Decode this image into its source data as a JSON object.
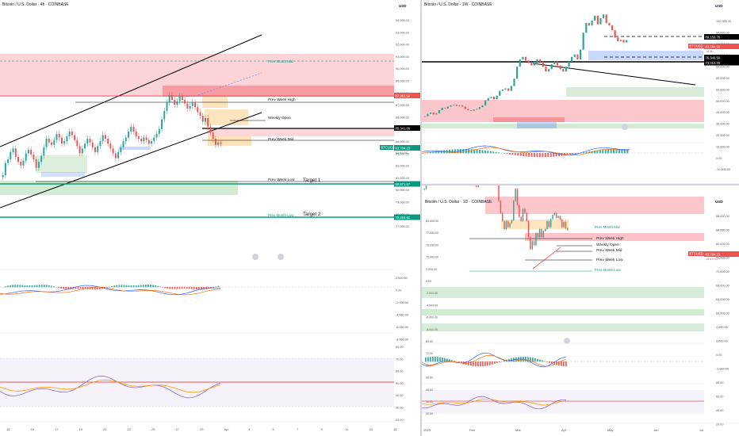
{
  "colors": {
    "bull": "#26a69a",
    "bear": "#ef5350",
    "zone_red": "#f23645",
    "zone_green": "#4caf50",
    "zone_orange": "#ff9800",
    "zone_blue": "#2962ff",
    "rsi": "#7e57c2",
    "rsi_ma": "#ff9800",
    "macd": "#2962ff",
    "signal": "#ff6d00",
    "teal_line": "#089981"
  },
  "left": {
    "title": "Bitcoin / U.S. Dollar · 4h · COINBASE",
    "currency": "USD",
    "price_ticks": [
      "94,000.00",
      "93,000.00",
      "92,000.00",
      "91,000.00",
      "90,000.00",
      "89,000.00",
      "88,000.00",
      "87,000.00",
      "86,000.00",
      "85,000.00",
      "84,000.00",
      "83,000.00",
      "82,000.00",
      "81,000.00",
      "80,000.00",
      "79,000.00",
      "78,000.00",
      "77,000.00"
    ],
    "macd_ticks": [
      "2,000.00",
      "0.00",
      "-2,000.00",
      "-4,000.00",
      "-6,000.00",
      "-8,000.00"
    ],
    "rsi_ticks": [
      "80.00",
      "70.00",
      "60.00",
      "50.00",
      "40.00",
      "30.00",
      "20.00"
    ],
    "x_ticks": [
      "15",
      "15",
      "17",
      "19",
      "21",
      "23",
      "25",
      "27",
      "29",
      "Apr",
      "3",
      "5",
      "7",
      "9",
      "11",
      "13",
      "15"
    ],
    "labels": {
      "prev_month_mid": "Prev Month Mid",
      "prev_week_high": "Prev Week High",
      "weekly_open": "Weekly Open",
      "prev_week_mid": "Prev Week Mid",
      "prev_week_low": "Prev Week Low",
      "prev_month_low": "Prev Month Low",
      "target_1": "Target 1",
      "target_2": "Target 2"
    },
    "price_tags": {
      "pwh": "87,961.58",
      "wo": "85,341.66",
      "cur": "83,784.23",
      "cur_sub": "03:57:05",
      "btcusd": "BTCUSD",
      "t1": "80,871.57",
      "t2": "78,253.61"
    }
  },
  "right_top": {
    "title": "Bitcoin / U.S. Dollar · 1W · COINBASE",
    "currency": "USD",
    "price_ticks": [
      "100,000.00",
      "94,000.00",
      "92,000.00",
      "91,000.00",
      "90,000.00",
      "80,000.00",
      "60,000.00",
      "50,000.00",
      "40,000.00",
      "30,000.00",
      "20,000.00",
      "10,000.00",
      "0.00",
      "-10,000.00"
    ],
    "x_ticks": [
      "23",
      "Mar",
      "Jul",
      "Sep",
      "2024",
      "Mar",
      "Jul",
      "Sep",
      "Nov",
      "2025",
      "Mar",
      "Jul",
      "Nov",
      "2026"
    ],
    "price_tags": {
      "l1": "89,159.76",
      "cur": "83,784.23",
      "cur_sub": "1d 8h",
      "l2": "76,349.59",
      "l3": "73,012.16",
      "btcusd": "BTCUSD"
    }
  },
  "right_bottom": {
    "title": "Bitcoin / U.S. Dollar · 1D · COINBASE",
    "currency": "USD",
    "left_ticks": [
      "80,000.00",
      "77,500.00",
      "76,000.00",
      "75,000.00",
      "2,000.00",
      "0.00",
      "-2,000.00",
      "-4,000.00",
      "-6,000.00",
      "-8,000.00",
      "80.00",
      "70.00",
      "60.00",
      "50.00",
      "40.00",
      "30.00",
      "20.00"
    ],
    "right_ticks": [
      "88,000.00",
      "84,000.00",
      "80,000.00",
      "76,000.00",
      "72,000.00",
      "68,000.00",
      "64,000.00",
      "60,000.00",
      "4,000.00",
      "2,000.00",
      "0.00",
      "-2,000.00",
      "80.00",
      "60.00",
      "40.00",
      "20.00"
    ],
    "x_ticks": [
      "2025",
      "Feb",
      "Mar",
      "Apr",
      "May",
      "Jun",
      "Jul"
    ],
    "labels": {
      "prev_month_mid": "Prev Month Mid",
      "prev_week_high": "Prev Week High",
      "weekly_open": "Weekly Open",
      "prev_week_mid": "Prev Week Mid",
      "prev_week_low": "Prev Week Low",
      "prev_month_low": "Prev Month Low"
    },
    "price_tags": {
      "cur": "83,784.23",
      "cur_sub": "15:47:03",
      "btcusd": "BTCUSD"
    }
  },
  "chart_data": [
    {
      "type": "candlestick",
      "title": "Bitcoin / U.S. Dollar · 4h · COINBASE",
      "close": [
        81200,
        82200,
        82500,
        83100,
        83400,
        82700,
        82300,
        82000,
        82400,
        83000,
        83300,
        82900,
        82500,
        81800,
        82300,
        82800,
        83500,
        84200,
        83900,
        83700,
        84100,
        84600,
        84300,
        83800,
        84000,
        84400,
        84800,
        84500,
        84100,
        83600,
        83000,
        83400,
        83800,
        84200,
        83900,
        83500,
        83100,
        83600,
        84000,
        84500,
        84200,
        83800,
        83400,
        83000,
        82600,
        83100,
        83500,
        84000,
        84300,
        84800,
        85200,
        84800,
        84400,
        84200,
        84000,
        84300,
        84100,
        83800,
        84000,
        84300,
        84600,
        85000,
        85800,
        86500,
        87200,
        87800,
        87400,
        87000,
        87300,
        87700,
        87400,
        87100,
        86700,
        86900,
        87200,
        86800,
        86400,
        86100,
        85600,
        85900,
        85200,
        84700,
        84200,
        83700,
        83900,
        83784
      ],
      "levels": {
        "prev_week_high": 87961.58,
        "weekly_open": 85341.66,
        "target_1": 80871.57,
        "target_2": 78253.61,
        "current": 83784.23
      },
      "ylim": [
        76500,
        94600
      ]
    },
    {
      "type": "candlestick",
      "title": "Bitcoin / U.S. Dollar · 1W · COINBASE",
      "close": [
        21000,
        23000,
        24000,
        22500,
        23500,
        26000,
        28000,
        27500,
        29000,
        30000,
        30500,
        29500,
        30000,
        29000,
        27000,
        26000,
        25500,
        26500,
        27000,
        28500,
        30000,
        34000,
        36000,
        37000,
        35000,
        38000,
        42000,
        43000,
        44000,
        42000,
        46000,
        52000,
        62000,
        68000,
        70000,
        67000,
        65000,
        63000,
        66000,
        68000,
        66000,
        62000,
        58000,
        60000,
        64000,
        66000,
        63000,
        60000,
        58000,
        62000,
        66000,
        70000,
        72000,
        68000,
        76000,
        90000,
        98000,
        96000,
        100000,
        104000,
        97000,
        102000,
        105000,
        98000,
        96000,
        92000,
        86000,
        83000,
        84000,
        82000,
        83784
      ],
      "levels": {
        "line_1": 89159.76,
        "current": 83784.23,
        "line_2": 76349.59,
        "line_3": 73012.16
      },
      "ylim": [
        -10000,
        110000
      ]
    },
    {
      "type": "candlestick",
      "title": "Bitcoin / U.S. Dollar · 1D · COINBASE",
      "close": [
        94000,
        96000,
        97500,
        99000,
        101000,
        103500,
        102000,
        104500,
        102000,
        99000,
        97500,
        98500,
        99000,
        100500,
        102000,
        104500,
        105000,
        103500,
        101000,
        99000,
        97000,
        98500,
        96500,
        95500,
        96000,
        97500,
        96000,
        95000,
        94500,
        96000,
        97000,
        96500,
        95500,
        96000,
        96800,
        97500,
        98000,
        96500,
        96000,
        95000,
        91000,
        88000,
        86000,
        84000,
        86000,
        84500,
        85500,
        86200,
        91000,
        94000,
        90000,
        87000,
        86000,
        89000,
        88000,
        86000,
        82000,
        79000,
        81000,
        80000,
        83000,
        82000,
        84000,
        82000,
        83500,
        84000,
        86000,
        84500,
        86500,
        87500,
        88000,
        86800,
        87200,
        86400,
        84500,
        85800,
        84200,
        83784
      ],
      "levels": {
        "current": 83784.23
      },
      "ylim": [
        59000,
        90500
      ]
    }
  ]
}
